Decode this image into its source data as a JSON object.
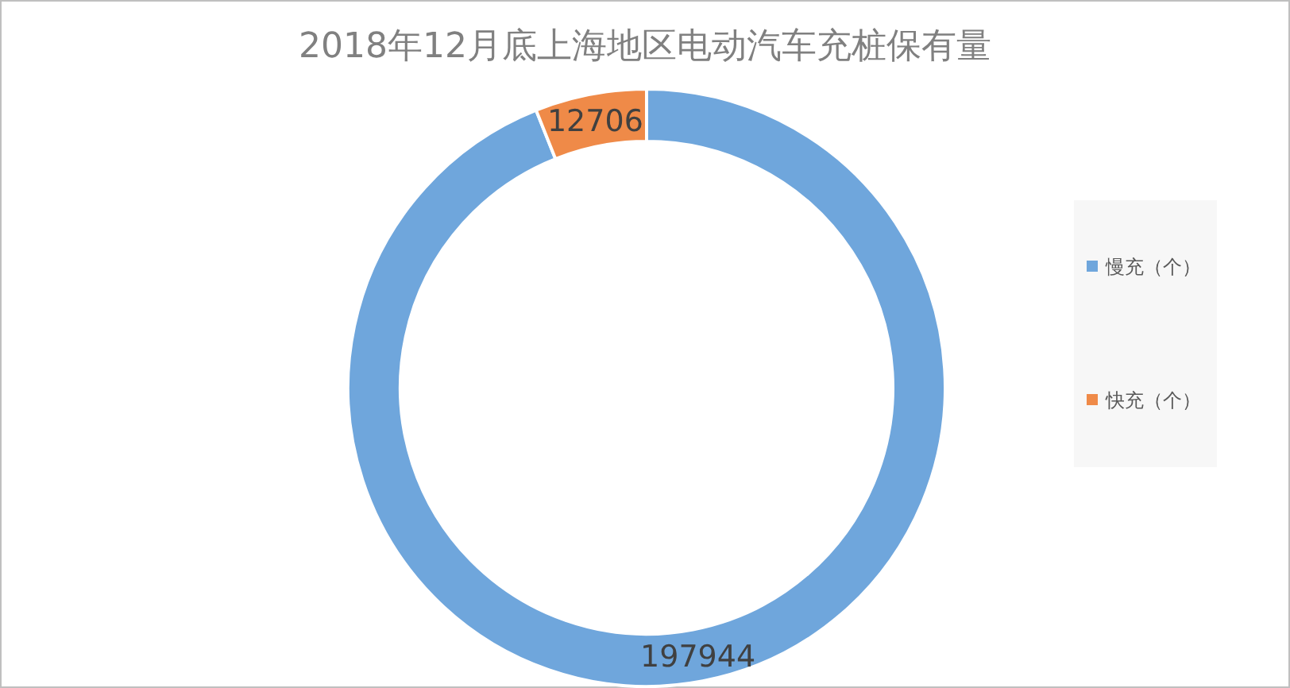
{
  "chart_data": {
    "type": "donut",
    "title": "2018年12月底上海地区电动汽车充桩保有量",
    "categories": [
      "慢充（个）",
      "快充（个）"
    ],
    "values": [
      197944,
      12706
    ],
    "colors": [
      "#6fa6dc",
      "#ef8a48"
    ],
    "data_labels": true,
    "legend": "right"
  }
}
